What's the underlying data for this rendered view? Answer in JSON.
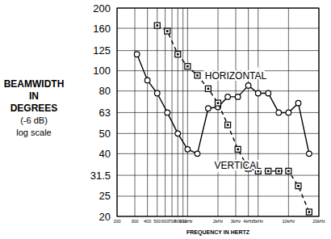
{
  "chart_data": {
    "type": "line",
    "y_label": [
      "BEAMWIDTH",
      "IN",
      "DEGREES",
      "(-6 dB)",
      "log scale"
    ],
    "x_label": "FREQUENCY IN HERTZ",
    "log": true,
    "grid": true,
    "xlim": [
      200,
      20000
    ],
    "ylim": [
      20,
      200
    ],
    "xticks": [
      200,
      300,
      400,
      500,
      600,
      700,
      800,
      900,
      {
        "value": 1000,
        "label": "1kHz"
      },
      {
        "value": 2000,
        "label": "2kHz"
      },
      {
        "value": 3000,
        "label": "3kHz"
      },
      {
        "value": 4000,
        "label": "4kHz"
      },
      {
        "value": 5000,
        "label": "5kHz"
      },
      {
        "value": 10000,
        "label": "10kHz"
      },
      {
        "value": 20000,
        "label": "20kHz"
      }
    ],
    "yticks": [
      20,
      25,
      31.5,
      40,
      50,
      63,
      80,
      100,
      125,
      160,
      200
    ],
    "x": [
      315,
      400,
      500,
      630,
      800,
      1000,
      1250,
      1600,
      2000,
      2500,
      3150,
      4000,
      5000,
      6300,
      8000,
      10000,
      12500,
      16000
    ],
    "series": [
      {
        "name": "HORIZONTAL",
        "color": "#000000",
        "marker": "circle",
        "line_style": "solid",
        "values": [
          120,
          90,
          78,
          63,
          50,
          42,
          40,
          66,
          67,
          75,
          75,
          85,
          78,
          78,
          63,
          63,
          70,
          40
        ]
      },
      {
        "name": "VERTICAL",
        "color": "#000000",
        "marker": "square",
        "line_style": "dashed",
        "values": [
          null,
          null,
          165,
          155,
          120,
          105,
          95,
          82,
          70,
          55,
          42,
          34,
          33,
          33,
          33,
          33,
          28,
          21
        ]
      }
    ]
  }
}
